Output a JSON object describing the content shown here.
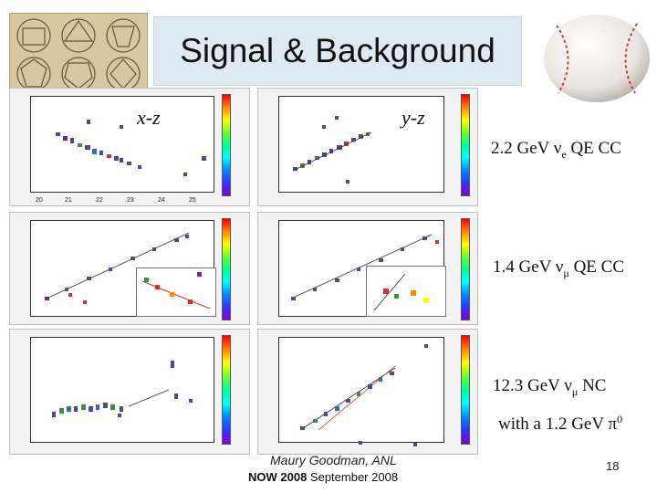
{
  "slide": {
    "title": "Signal & Background",
    "projections": {
      "left": "x-z",
      "right": "y-z"
    },
    "events": [
      {
        "line1": "2.2 GeV ν",
        "sub1": "e",
        "rest1": " QE CC"
      },
      {
        "line1": "1.4 GeV ν",
        "sub1": "μ",
        "rest1": " QE CC"
      },
      {
        "line1": "12.3 GeV ν",
        "sub1": "μ",
        "rest1": " NC",
        "line2": "with a 1.2 GeV π",
        "sup2": "0"
      }
    ],
    "footer": {
      "author": "Maury Goodman, ANL",
      "conf_bold": "NOW 2008",
      "conf_rest": " September 2008",
      "page": "18"
    }
  },
  "colors": {
    "title_bg": "#dfe9f2",
    "panel_bg": "#f2f2f2"
  }
}
